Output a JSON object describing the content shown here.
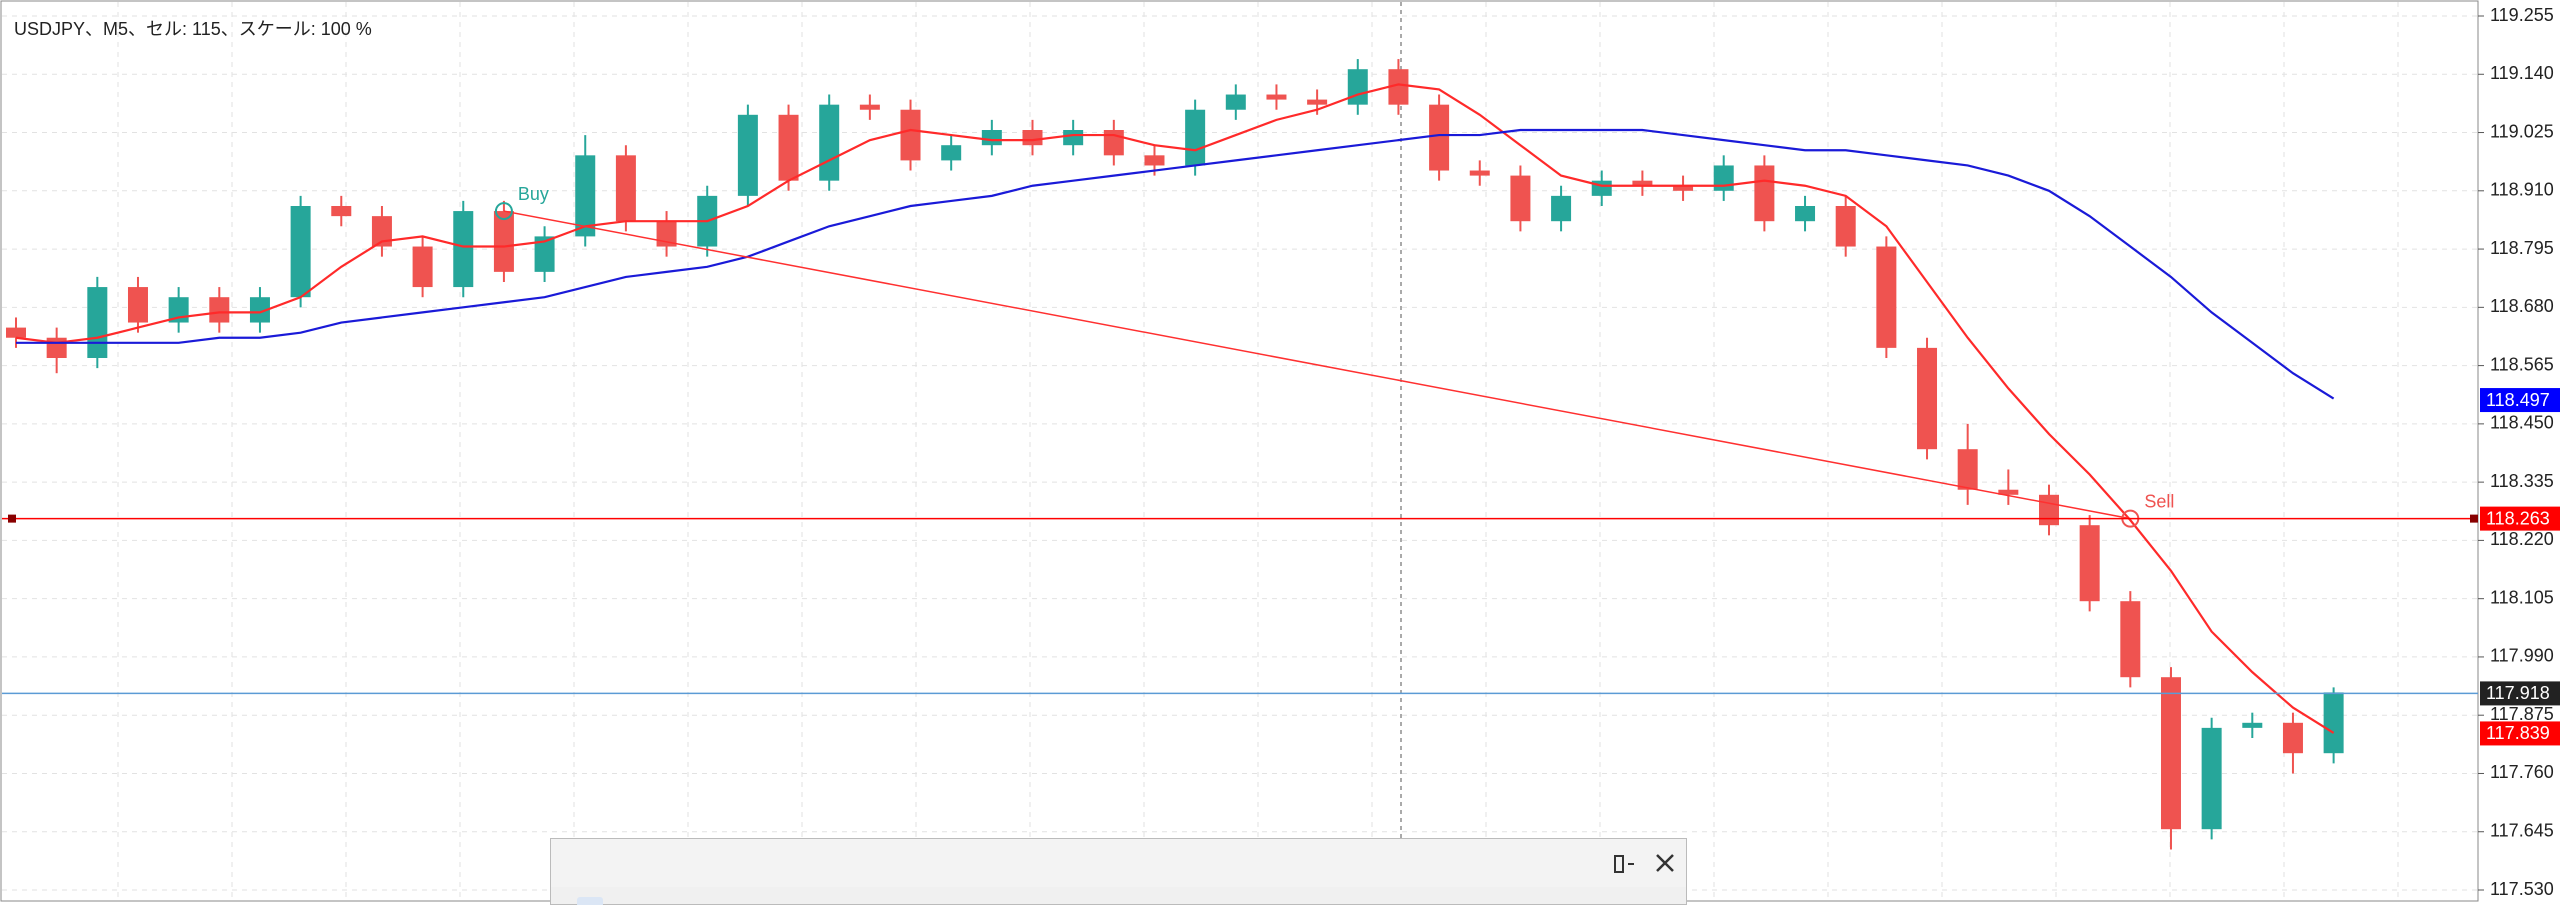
{
  "chart_data": {
    "type": "candlestick",
    "title": "USDJPY、M5、セル: 115、スケール: 100 %",
    "categories": [
      null,
      null,
      null,
      null,
      null,
      null,
      null,
      null,
      null,
      null,
      null,
      null,
      null,
      null,
      null,
      null,
      null,
      null,
      null,
      null,
      null,
      null,
      null,
      null,
      null,
      null,
      null,
      null,
      null,
      null,
      null,
      null,
      null,
      null,
      null,
      null,
      null,
      null,
      null,
      null,
      null,
      null,
      null,
      null,
      null,
      null,
      null,
      null,
      null,
      null,
      null,
      null,
      null,
      null,
      null,
      null,
      null,
      null
    ],
    "open": [
      118.64,
      118.62,
      118.58,
      118.72,
      118.65,
      118.7,
      118.65,
      118.7,
      118.88,
      118.86,
      118.8,
      118.72,
      118.87,
      118.75,
      118.82,
      118.98,
      118.85,
      118.8,
      118.9,
      119.06,
      118.93,
      119.08,
      119.07,
      118.97,
      119.0,
      119.03,
      119.0,
      119.03,
      118.98,
      118.96,
      119.07,
      119.1,
      119.09,
      119.08,
      119.15,
      119.08,
      118.95,
      118.94,
      118.85,
      118.9,
      118.93,
      118.92,
      118.91,
      118.96,
      118.85,
      118.88,
      118.8,
      118.6,
      118.4,
      118.32,
      118.31,
      118.25,
      118.1,
      117.95,
      117.65,
      117.85,
      117.86,
      117.8
    ],
    "high": [
      118.66,
      118.64,
      118.74,
      118.74,
      118.72,
      118.72,
      118.72,
      118.9,
      118.9,
      118.88,
      118.82,
      118.89,
      118.89,
      118.84,
      119.02,
      119.0,
      118.87,
      118.92,
      119.08,
      119.08,
      119.1,
      119.1,
      119.09,
      119.02,
      119.05,
      119.05,
      119.05,
      119.05,
      119.0,
      119.09,
      119.12,
      119.12,
      119.11,
      119.17,
      119.17,
      119.1,
      118.97,
      118.96,
      118.92,
      118.95,
      118.95,
      118.94,
      118.98,
      118.98,
      118.9,
      118.9,
      118.82,
      118.62,
      118.45,
      118.36,
      118.33,
      118.27,
      118.12,
      117.97,
      117.87,
      117.88,
      117.88,
      117.93
    ],
    "low": [
      118.6,
      118.55,
      118.56,
      118.63,
      118.63,
      118.63,
      118.63,
      118.68,
      118.84,
      118.78,
      118.7,
      118.7,
      118.73,
      118.73,
      118.8,
      118.83,
      118.78,
      118.78,
      118.88,
      118.91,
      118.91,
      119.05,
      118.95,
      118.95,
      118.98,
      118.98,
      118.98,
      118.96,
      118.94,
      118.94,
      119.05,
      119.07,
      119.06,
      119.06,
      119.06,
      118.93,
      118.92,
      118.83,
      118.83,
      118.88,
      118.9,
      118.89,
      118.89,
      118.83,
      118.83,
      118.78,
      118.58,
      118.38,
      118.29,
      118.29,
      118.23,
      118.08,
      117.93,
      117.61,
      117.63,
      117.83,
      117.76,
      117.78
    ],
    "close": [
      118.62,
      118.58,
      118.72,
      118.65,
      118.7,
      118.65,
      118.7,
      118.88,
      118.86,
      118.8,
      118.72,
      118.87,
      118.75,
      118.82,
      118.98,
      118.85,
      118.8,
      118.9,
      119.06,
      118.93,
      119.08,
      119.07,
      118.97,
      119.0,
      119.03,
      119.0,
      119.03,
      118.98,
      118.96,
      119.07,
      119.1,
      119.09,
      119.08,
      119.15,
      119.08,
      118.95,
      118.94,
      118.85,
      118.9,
      118.93,
      118.92,
      118.91,
      118.96,
      118.85,
      118.88,
      118.8,
      118.6,
      118.4,
      118.32,
      118.31,
      118.25,
      118.1,
      117.95,
      117.65,
      117.85,
      117.86,
      117.8,
      117.92
    ],
    "up_color": "#26a69a",
    "down_color": "#ef5350",
    "series": [
      {
        "color": "#ff2a2a",
        "values": [
          118.62,
          118.61,
          118.62,
          118.64,
          118.66,
          118.67,
          118.67,
          118.7,
          118.76,
          118.81,
          118.82,
          118.8,
          118.8,
          118.81,
          118.84,
          118.85,
          118.85,
          118.85,
          118.88,
          118.93,
          118.97,
          119.01,
          119.03,
          119.02,
          119.01,
          119.01,
          119.02,
          119.02,
          119.0,
          118.99,
          119.02,
          119.05,
          119.07,
          119.1,
          119.12,
          119.11,
          119.06,
          119.0,
          118.94,
          118.92,
          118.92,
          118.92,
          118.92,
          118.93,
          118.92,
          118.9,
          118.84,
          118.73,
          118.62,
          118.52,
          118.43,
          118.35,
          118.26,
          118.16,
          118.04,
          117.96,
          117.89,
          117.84
        ]
      },
      {
        "color": "#1a1ad8",
        "values": [
          118.61,
          118.61,
          118.61,
          118.61,
          118.61,
          118.62,
          118.62,
          118.63,
          118.65,
          118.66,
          118.67,
          118.68,
          118.69,
          118.7,
          118.72,
          118.74,
          118.75,
          118.76,
          118.78,
          118.81,
          118.84,
          118.86,
          118.88,
          118.89,
          118.9,
          118.92,
          118.93,
          118.94,
          118.95,
          118.96,
          118.97,
          118.98,
          118.99,
          119.0,
          119.01,
          119.02,
          119.02,
          119.03,
          119.03,
          119.03,
          119.03,
          119.02,
          119.01,
          119.0,
          118.99,
          118.99,
          118.98,
          118.97,
          118.96,
          118.94,
          118.91,
          118.86,
          118.8,
          118.74,
          118.67,
          118.61,
          118.55,
          118.5
        ]
      }
    ],
    "trades": [
      {
        "text": "Buy",
        "index": 12,
        "value": 118.87,
        "color": "#26a69a"
      },
      {
        "text": "Sell",
        "index": 52,
        "value": 118.263,
        "color": "#ef5350"
      }
    ],
    "price_tags": [
      {
        "value": 118.497,
        "color": "#0000ff"
      },
      {
        "value": 118.263,
        "color": "#ff0000",
        "line_color": "#ff0000"
      },
      {
        "value": 117.918,
        "color": "#222222",
        "line_color": "#5b9bd5"
      },
      {
        "value": 117.839,
        "color": "#ff0000"
      }
    ],
    "ylim": [
      117.53,
      119.255
    ],
    "yticks": [
      119.255,
      {
        "value": 119.14,
        "label": "119.140"
      },
      119.025,
      {
        "value": 118.91,
        "label": "118.910"
      },
      118.795,
      {
        "value": 118.68,
        "label": "118.680"
      },
      118.565,
      {
        "value": 118.45,
        "label": "118.450"
      },
      118.335,
      {
        "value": 118.22,
        "label": "118.220"
      },
      118.105,
      {
        "value": 117.99,
        "label": "117.990"
      },
      117.875,
      {
        "value": 117.76,
        "label": "117.760"
      },
      117.645,
      {
        "value": 117.53,
        "label": "117.530"
      }
    ],
    "grid": true
  }
}
